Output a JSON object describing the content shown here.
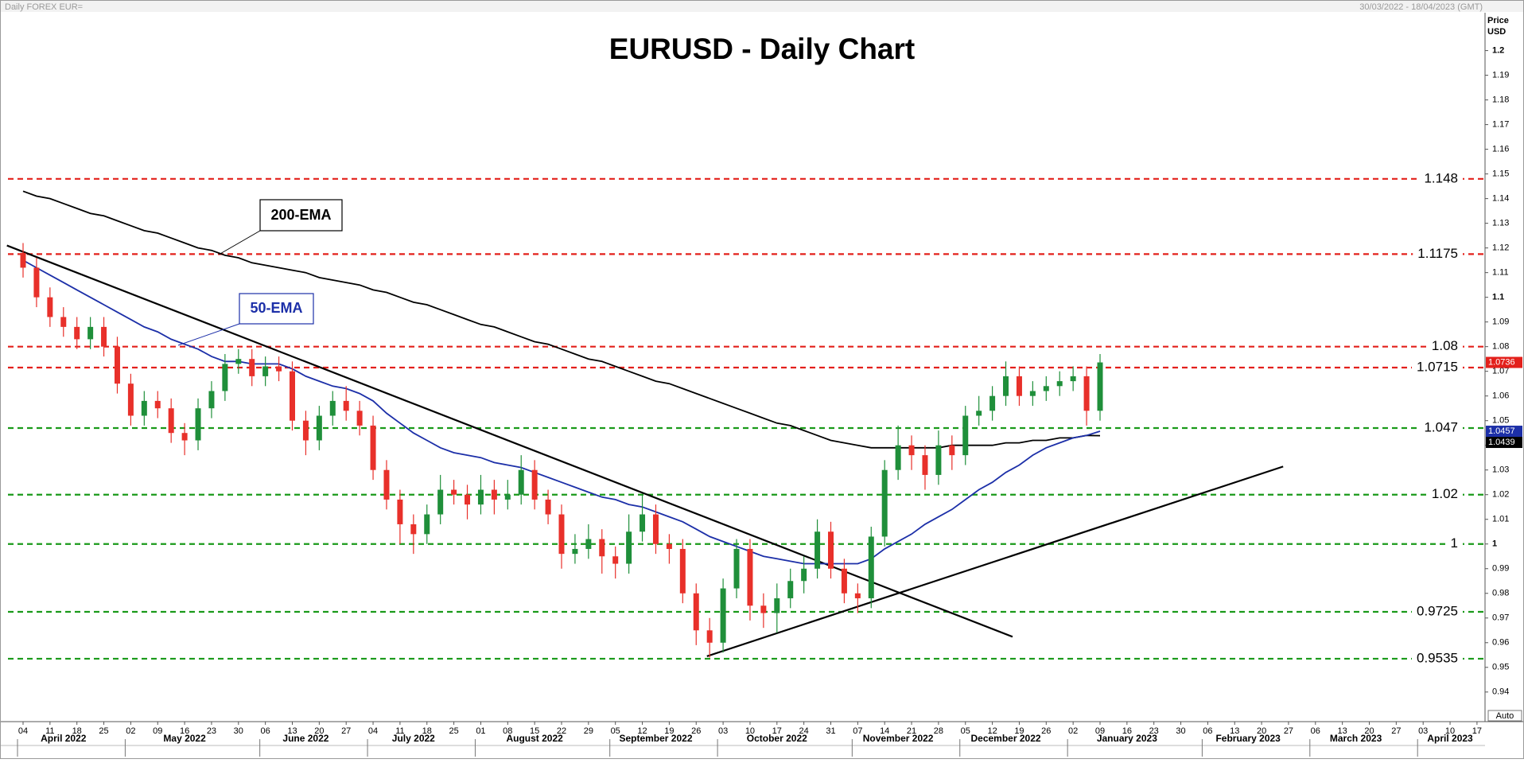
{
  "header": {
    "left": "Daily FOREX EUR=",
    "right": "30/03/2022 - 18/04/2023 (GMT)",
    "axis_title": "Price USD",
    "button": "Auto"
  },
  "chart_data": {
    "type": "candlestick",
    "title": "EURUSD - Daily Chart",
    "ylim": [
      0.928,
      1.2147
    ],
    "yticks": [
      0.94,
      0.95,
      0.96,
      0.97,
      0.98,
      0.99,
      1,
      1.01,
      1.02,
      1.03,
      1.04,
      1.05,
      1.06,
      1.07,
      1.08,
      1.09,
      1.1,
      1.11,
      1.12,
      1.13,
      1.14,
      1.15,
      1.16,
      1.17,
      1.18,
      1.19,
      1.2
    ],
    "up_color": "#1f8f3a",
    "down_color": "#e8302a",
    "candles": {
      "open": [
        1.118,
        1.112,
        1.1,
        1.092,
        1.088,
        1.083,
        1.088,
        1.08,
        1.065,
        1.052,
        1.058,
        1.055,
        1.045,
        1.042,
        1.055,
        1.062,
        1.073,
        1.075,
        1.068,
        1.072,
        1.07,
        1.05,
        1.042,
        1.052,
        1.058,
        1.054,
        1.048,
        1.03,
        1.018,
        1.008,
        1.004,
        1.012,
        1.022,
        1.02,
        1.016,
        1.022,
        1.018,
        1.02,
        1.03,
        1.018,
        1.012,
        0.996,
        0.998,
        1.002,
        0.995,
        0.992,
        1.005,
        1.012,
        1.0,
        0.998,
        0.98,
        0.965,
        0.96,
        0.982,
        0.998,
        0.975,
        0.972,
        0.978,
        0.985,
        0.99,
        1.005,
        0.99,
        0.98,
        0.978,
        1.003,
        1.03,
        1.04,
        1.036,
        1.028,
        1.04,
        1.036,
        1.052,
        1.054,
        1.06,
        1.068,
        1.06,
        1.062,
        1.064,
        1.066,
        1.068,
        1.054
      ],
      "high": [
        1.122,
        1.116,
        1.104,
        1.096,
        1.092,
        1.092,
        1.092,
        1.084,
        1.069,
        1.062,
        1.062,
        1.059,
        1.049,
        1.059,
        1.066,
        1.077,
        1.079,
        1.079,
        1.076,
        1.076,
        1.074,
        1.054,
        1.056,
        1.062,
        1.064,
        1.058,
        1.052,
        1.034,
        1.022,
        1.012,
        1.016,
        1.028,
        1.026,
        1.024,
        1.028,
        1.026,
        1.026,
        1.036,
        1.034,
        1.022,
        1.016,
        1.004,
        1.008,
        1.006,
        0.999,
        1.012,
        1.02,
        1.016,
        1.004,
        1.002,
        0.984,
        0.97,
        0.986,
        1.002,
        1.002,
        0.98,
        0.984,
        0.99,
        0.995,
        1.01,
        1.009,
        0.994,
        0.984,
        1.007,
        1.034,
        1.048,
        1.044,
        1.04,
        1.046,
        1.044,
        1.056,
        1.06,
        1.064,
        1.074,
        1.072,
        1.066,
        1.068,
        1.07,
        1.072,
        1.072,
        1.077
      ],
      "low": [
        1.108,
        1.096,
        1.088,
        1.084,
        1.079,
        1.079,
        1.076,
        1.061,
        1.048,
        1.048,
        1.051,
        1.041,
        1.036,
        1.038,
        1.051,
        1.058,
        1.069,
        1.064,
        1.064,
        1.066,
        1.046,
        1.036,
        1.038,
        1.048,
        1.05,
        1.044,
        1.026,
        1.014,
        1.0,
        0.996,
        1.0,
        1.008,
        1.016,
        1.01,
        1.012,
        1.012,
        1.014,
        1.016,
        1.014,
        1.008,
        0.99,
        0.992,
        0.994,
        0.988,
        0.986,
        0.988,
        1.001,
        0.996,
        0.992,
        0.976,
        0.959,
        0.954,
        0.956,
        0.978,
        0.969,
        0.966,
        0.964,
        0.974,
        0.98,
        0.986,
        0.986,
        0.976,
        0.972,
        0.974,
        0.999,
        1.026,
        1.03,
        1.022,
        1.024,
        1.03,
        1.032,
        1.048,
        1.05,
        1.056,
        1.056,
        1.056,
        1.058,
        1.06,
        1.062,
        1.048,
        1.05
      ],
      "close": [
        1.112,
        1.1,
        1.092,
        1.088,
        1.083,
        1.088,
        1.08,
        1.065,
        1.052,
        1.058,
        1.055,
        1.045,
        1.042,
        1.055,
        1.062,
        1.073,
        1.075,
        1.068,
        1.072,
        1.07,
        1.05,
        1.042,
        1.052,
        1.058,
        1.054,
        1.048,
        1.03,
        1.018,
        1.008,
        1.004,
        1.012,
        1.022,
        1.02,
        1.016,
        1.022,
        1.018,
        1.02,
        1.03,
        1.018,
        1.012,
        0.996,
        0.998,
        1.002,
        0.995,
        0.992,
        1.005,
        1.012,
        1.0,
        0.998,
        0.98,
        0.965,
        0.96,
        0.982,
        0.998,
        0.975,
        0.972,
        0.978,
        0.985,
        0.99,
        1.005,
        0.99,
        0.98,
        0.978,
        1.003,
        1.03,
        1.04,
        1.036,
        1.028,
        1.04,
        1.036,
        1.052,
        1.054,
        1.06,
        1.068,
        1.06,
        1.062,
        1.064,
        1.066,
        1.068,
        1.054,
        1.0736
      ]
    },
    "series": [
      {
        "name": "200-EMA",
        "color": "#000000",
        "values": [
          1.143,
          1.141,
          1.14,
          1.138,
          1.136,
          1.134,
          1.133,
          1.131,
          1.129,
          1.127,
          1.126,
          1.124,
          1.122,
          1.12,
          1.119,
          1.117,
          1.116,
          1.114,
          1.113,
          1.112,
          1.111,
          1.11,
          1.108,
          1.107,
          1.106,
          1.105,
          1.103,
          1.102,
          1.1,
          1.098,
          1.097,
          1.095,
          1.093,
          1.091,
          1.089,
          1.088,
          1.086,
          1.084,
          1.082,
          1.081,
          1.079,
          1.077,
          1.075,
          1.074,
          1.072,
          1.07,
          1.068,
          1.066,
          1.065,
          1.063,
          1.061,
          1.059,
          1.057,
          1.055,
          1.053,
          1.051,
          1.049,
          1.048,
          1.046,
          1.044,
          1.042,
          1.041,
          1.04,
          1.039,
          1.039,
          1.039,
          1.039,
          1.039,
          1.039,
          1.04,
          1.04,
          1.04,
          1.04,
          1.041,
          1.041,
          1.042,
          1.042,
          1.043,
          1.043,
          1.044,
          1.0439
        ]
      },
      {
        "name": "50-EMA",
        "color": "#1c2fa8",
        "values": [
          1.115,
          1.112,
          1.109,
          1.106,
          1.103,
          1.1,
          1.097,
          1.094,
          1.091,
          1.088,
          1.086,
          1.083,
          1.081,
          1.079,
          1.076,
          1.074,
          1.074,
          1.073,
          1.073,
          1.073,
          1.071,
          1.068,
          1.066,
          1.064,
          1.063,
          1.061,
          1.058,
          1.053,
          1.049,
          1.045,
          1.042,
          1.039,
          1.037,
          1.036,
          1.035,
          1.033,
          1.032,
          1.031,
          1.029,
          1.027,
          1.025,
          1.023,
          1.021,
          1.019,
          1.018,
          1.016,
          1.015,
          1.013,
          1.011,
          1.009,
          1.006,
          1.003,
          1.001,
          0.999,
          0.997,
          0.995,
          0.994,
          0.993,
          0.992,
          0.992,
          0.992,
          0.992,
          0.992,
          0.994,
          0.998,
          1.001,
          1.004,
          1.008,
          1.011,
          1.014,
          1.018,
          1.022,
          1.025,
          1.029,
          1.032,
          1.036,
          1.039,
          1.041,
          1.043,
          1.044,
          1.0457
        ]
      }
    ],
    "levels": [
      {
        "value": 1.148,
        "color": "#e3201b"
      },
      {
        "value": 1.1175,
        "color": "#e3201b"
      },
      {
        "value": 1.08,
        "color": "#e3201b"
      },
      {
        "value": 1.0715,
        "color": "#e3201b"
      },
      {
        "value": 1.047,
        "color": "#1a9a1a"
      },
      {
        "value": 1.02,
        "color": "#1a9a1a"
      },
      {
        "value": 1,
        "color": "#1a9a1a"
      },
      {
        "value": 0.9725,
        "color": "#1a9a1a"
      },
      {
        "value": 0.9535,
        "color": "#1a9a1a"
      }
    ],
    "trendlines": [
      [
        [
          -1.2,
          1.121
        ],
        [
          73.5,
          0.9624
        ]
      ],
      [
        [
          50.8,
          0.9545
        ],
        [
          93.6,
          1.0314
        ]
      ]
    ],
    "x_axis": [
      {
        "month": "April 2022",
        "days": [
          "04",
          "11",
          "18",
          "25"
        ]
      },
      {
        "month": "May 2022",
        "days": [
          "02",
          "09",
          "16",
          "23",
          "30"
        ]
      },
      {
        "month": "June 2022",
        "days": [
          "06",
          "13",
          "20",
          "27"
        ]
      },
      {
        "month": "July 2022",
        "days": [
          "04",
          "11",
          "18",
          "25"
        ]
      },
      {
        "month": "August 2022",
        "days": [
          "01",
          "08",
          "15",
          "22",
          "29"
        ]
      },
      {
        "month": "September 2022",
        "days": [
          "05",
          "12",
          "19",
          "26"
        ]
      },
      {
        "month": "October 2022",
        "days": [
          "03",
          "10",
          "17",
          "24",
          "31"
        ]
      },
      {
        "month": "November 2022",
        "days": [
          "07",
          "14",
          "21",
          "28"
        ]
      },
      {
        "month": "December 2022",
        "days": [
          "05",
          "12",
          "19",
          "26"
        ]
      },
      {
        "month": "January 2023",
        "days": [
          "02",
          "09",
          "16",
          "23",
          "30"
        ]
      },
      {
        "month": "February 2023",
        "days": [
          "06",
          "13",
          "20",
          "27"
        ]
      },
      {
        "month": "March 2023",
        "days": [
          "06",
          "13",
          "20",
          "27"
        ]
      },
      {
        "month": "April 2023",
        "days": [
          "03",
          "10",
          "17"
        ]
      }
    ]
  }
}
